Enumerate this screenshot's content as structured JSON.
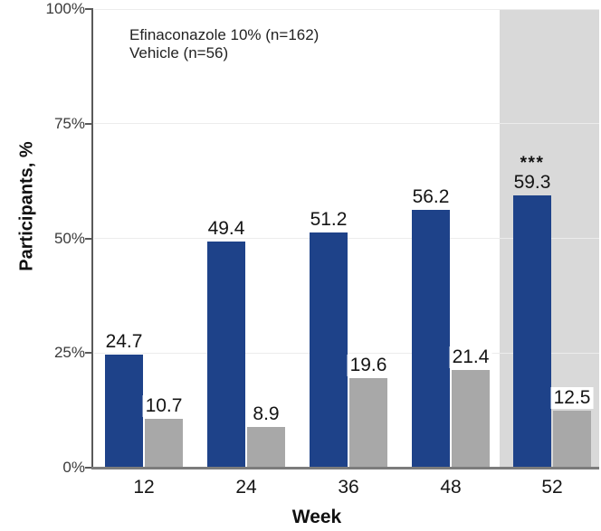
{
  "figure_type": "grouped-bar-chart",
  "colors": {
    "efinaconazole_blue": "#1e4289",
    "vehicle_gray": "#a8a8a8",
    "highlight_band": "#d9d9d9",
    "gridline": "#ececec",
    "axis_line": "#5a5a5a",
    "baseline": "#7c7c7c",
    "value_text": "#141414",
    "tick_text": "#3a3a3a"
  },
  "legend": {
    "items": [
      {
        "label": "Efinaconazole 10% (n=162)",
        "color": "#1e4289"
      },
      {
        "label": "Vehicle (n=56)",
        "color": "#a8a8a8"
      }
    ]
  },
  "chart_data": {
    "type": "bar",
    "title": "",
    "xlabel": "Week",
    "ylabel": "Participants, %",
    "ylim": [
      0,
      100
    ],
    "grid": "horizontal-faint",
    "legend_position": "top-left-inside",
    "categories": [
      "12",
      "24",
      "36",
      "48",
      "52"
    ],
    "y_ticks": [
      {
        "value": 0,
        "label": "0%"
      },
      {
        "value": 25,
        "label": "25%"
      },
      {
        "value": 50,
        "label": "50%"
      },
      {
        "value": 75,
        "label": "75%"
      },
      {
        "value": 100,
        "label": "100%"
      }
    ],
    "series": [
      {
        "name": "Efinaconazole 10% (n=162)",
        "color": "#1e4289",
        "values": [
          24.7,
          49.4,
          51.2,
          56.2,
          59.3
        ],
        "value_labels": [
          "24.7",
          "49.4",
          "51.2",
          "56.2",
          "59.3"
        ],
        "label_bg": "none"
      },
      {
        "name": "Vehicle (n=56)",
        "color": "#a8a8a8",
        "values": [
          10.7,
          8.9,
          19.6,
          21.4,
          12.5
        ],
        "value_labels": [
          "10.7",
          "8.9",
          "19.6",
          "21.4",
          "12.5"
        ],
        "label_bg": "white"
      }
    ],
    "annotations": [
      {
        "text": "***",
        "category": "52",
        "series": "Efinaconazole 10% (n=162)",
        "position": "above-value-label"
      }
    ],
    "highlight": {
      "category": "52",
      "color": "#d9d9d9",
      "extent": "full-height-column-band"
    }
  }
}
